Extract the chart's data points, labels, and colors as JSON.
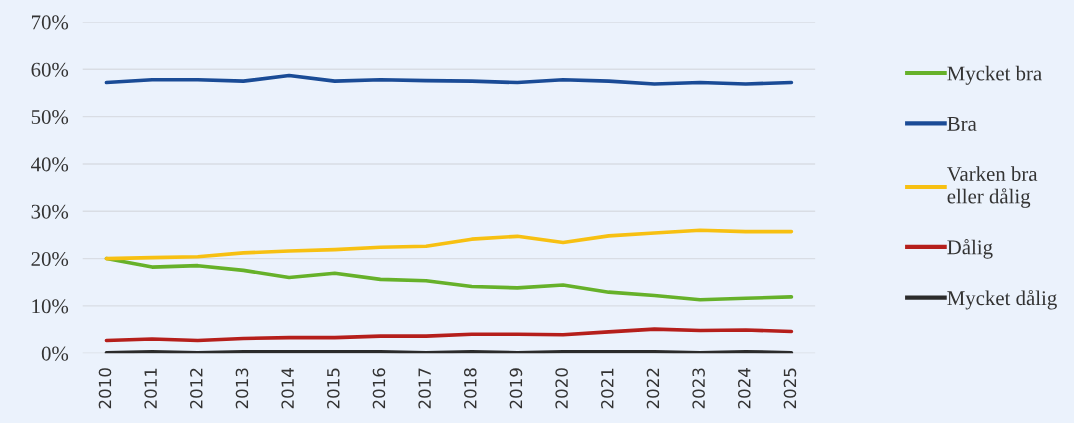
{
  "chart_data": {
    "type": "line",
    "categories": [
      "2010",
      "2011",
      "2012",
      "2013",
      "2014",
      "2015",
      "2016",
      "2017",
      "2018",
      "2019",
      "2020",
      "2021",
      "2022",
      "2023",
      "2024",
      "2025"
    ],
    "series": [
      {
        "name": "Mycket bra",
        "color": "#66b12a",
        "values": [
          20,
          18.2,
          18.5,
          17.5,
          16,
          16.9,
          15.6,
          15.3,
          14.1,
          13.8,
          14.4,
          12.9,
          12.2,
          11.3,
          11.6,
          11.9
        ]
      },
      {
        "name": "Bra",
        "color": "#1a4b96",
        "values": [
          57.2,
          57.8,
          57.8,
          57.5,
          58.7,
          57.5,
          57.8,
          57.6,
          57.5,
          57.2,
          57.8,
          57.5,
          56.9,
          57.2,
          56.9,
          57.2
        ]
      },
      {
        "name": "Varken bra\neller dålig",
        "color": "#f7c012",
        "values": [
          20,
          20.2,
          20.4,
          21.2,
          21.6,
          21.9,
          22.4,
          22.6,
          24.1,
          24.7,
          23.4,
          24.8,
          25.4,
          26,
          25.7,
          25.7
        ]
      },
      {
        "name": "Dålig",
        "color": "#b51f1b",
        "values": [
          2.7,
          3,
          2.7,
          3.1,
          3.3,
          3.3,
          3.6,
          3.6,
          4,
          4,
          3.9,
          4.5,
          5.1,
          4.8,
          4.9,
          4.6
        ]
      },
      {
        "name": "Mycket dålig",
        "color": "#2b2b2b",
        "values": [
          0.1,
          0.3,
          0.1,
          0.3,
          0.3,
          0.3,
          0.3,
          0.1,
          0.3,
          0.1,
          0.3,
          0.3,
          0.3,
          0.1,
          0.3,
          0.1
        ]
      }
    ],
    "ylim": [
      0,
      70
    ],
    "yticks": [
      {
        "value": 0,
        "label": "0%"
      },
      {
        "value": 10,
        "label": "10%"
      },
      {
        "value": 20,
        "label": "20%"
      },
      {
        "value": 30,
        "label": "30%"
      },
      {
        "value": 40,
        "label": "40%"
      },
      {
        "value": 50,
        "label": "50%"
      },
      {
        "value": 60,
        "label": "60%"
      },
      {
        "value": 70,
        "label": "70%"
      }
    ],
    "grid": "y",
    "legend": "right",
    "marker": "none",
    "line_style": "solid"
  }
}
